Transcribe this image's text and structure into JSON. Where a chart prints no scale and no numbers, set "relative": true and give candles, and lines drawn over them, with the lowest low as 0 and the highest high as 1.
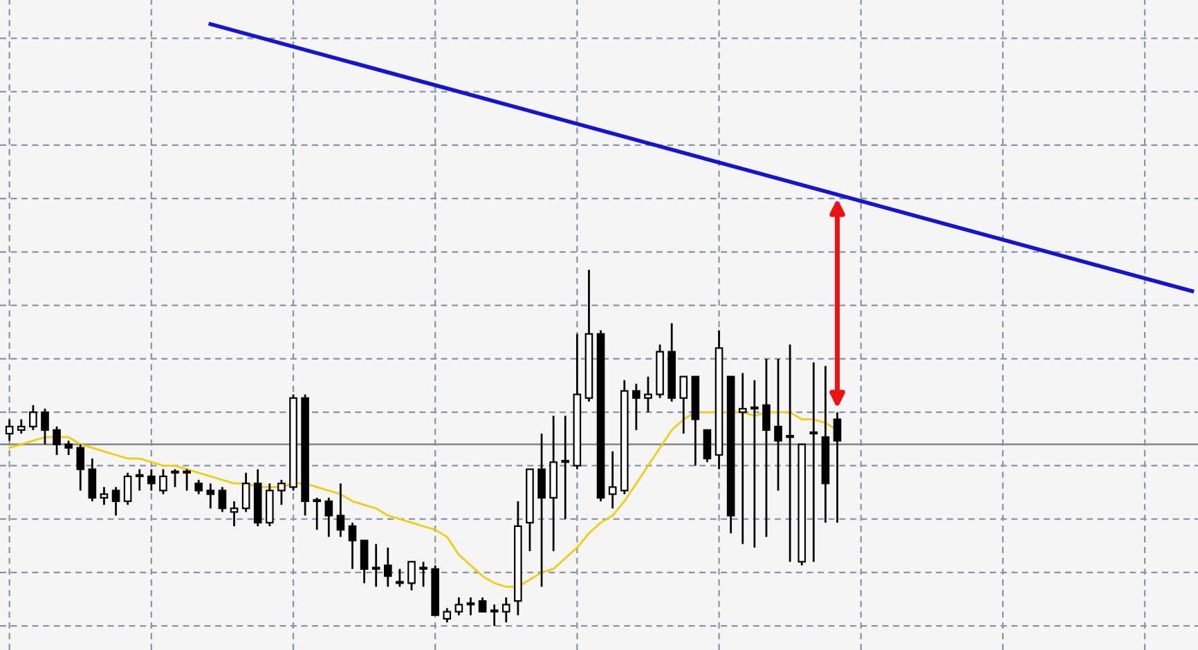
{
  "chart_data": {
    "type": "candlestick",
    "relative": true,
    "grid": true,
    "tick_labels": false,
    "categories": [
      null,
      null,
      null,
      null,
      null,
      null,
      null,
      null,
      null,
      null,
      null,
      null,
      null,
      null,
      null,
      null,
      null,
      null,
      null,
      null,
      null,
      null,
      null,
      null,
      null,
      null,
      null,
      null,
      null,
      null,
      null,
      null,
      null,
      null,
      null,
      null,
      null,
      null,
      null,
      null,
      null,
      null,
      null,
      null,
      null,
      null,
      null,
      null,
      null,
      null,
      null,
      null,
      null,
      null,
      null,
      null,
      null,
      null,
      null,
      null,
      null,
      null,
      null,
      null,
      null,
      null,
      null,
      null,
      null,
      null,
      null,
      null,
      null,
      null,
      null,
      null,
      null,
      null,
      null,
      null,
      null,
      null,
      null,
      null,
      null,
      null,
      null,
      null,
      null,
      null,
      null,
      null,
      null,
      null,
      null,
      null,
      null,
      null,
      null,
      null,
      null
    ],
    "ohlc": [
      [
        0.54,
        0.58,
        0.52,
        0.56
      ],
      [
        0.55,
        0.58,
        0.54,
        0.56
      ],
      [
        0.56,
        0.62,
        0.55,
        0.6
      ],
      [
        0.6,
        0.61,
        0.51,
        0.55
      ],
      [
        0.55,
        0.56,
        0.48,
        0.51
      ],
      [
        0.51,
        0.52,
        0.48,
        0.5
      ],
      [
        0.5,
        0.51,
        0.38,
        0.44
      ],
      [
        0.44,
        0.47,
        0.35,
        0.36
      ],
      [
        0.36,
        0.39,
        0.34,
        0.37
      ],
      [
        0.38,
        0.39,
        0.31,
        0.35
      ],
      [
        0.35,
        0.43,
        0.34,
        0.42
      ],
      [
        0.42,
        0.44,
        0.38,
        0.42
      ],
      [
        0.42,
        0.44,
        0.38,
        0.4
      ],
      [
        0.38,
        0.44,
        0.37,
        0.42
      ],
      [
        0.43,
        0.44,
        0.39,
        0.43
      ],
      [
        0.43,
        0.44,
        0.38,
        0.43
      ],
      [
        0.4,
        0.41,
        0.37,
        0.38
      ],
      [
        0.38,
        0.4,
        0.33,
        0.37
      ],
      [
        0.38,
        0.39,
        0.32,
        0.33
      ],
      [
        0.32,
        0.35,
        0.28,
        0.33
      ],
      [
        0.33,
        0.43,
        0.32,
        0.4
      ],
      [
        0.4,
        0.44,
        0.28,
        0.29
      ],
      [
        0.29,
        0.4,
        0.28,
        0.38
      ],
      [
        0.38,
        0.41,
        0.34,
        0.4
      ],
      [
        0.39,
        0.65,
        0.38,
        0.64
      ],
      [
        0.64,
        0.65,
        0.31,
        0.35
      ],
      [
        0.35,
        0.36,
        0.27,
        0.35
      ],
      [
        0.35,
        0.36,
        0.25,
        0.31
      ],
      [
        0.31,
        0.4,
        0.25,
        0.27
      ],
      [
        0.28,
        0.29,
        0.16,
        0.24
      ],
      [
        0.24,
        0.24,
        0.12,
        0.16
      ],
      [
        0.16,
        0.23,
        0.11,
        0.16
      ],
      [
        0.17,
        0.22,
        0.11,
        0.14
      ],
      [
        0.12,
        0.16,
        0.11,
        0.12
      ],
      [
        0.12,
        0.18,
        0.1,
        0.18
      ],
      [
        0.16,
        0.18,
        0.11,
        0.16
      ],
      [
        0.16,
        0.17,
        0.03,
        0.03
      ],
      [
        0.02,
        0.05,
        0.01,
        0.04
      ],
      [
        0.04,
        0.08,
        0.03,
        0.06
      ],
      [
        0.06,
        0.08,
        0.03,
        0.06
      ],
      [
        0.07,
        0.08,
        0.04,
        0.04
      ],
      [
        0.04,
        0.06,
        0,
        0.04
      ],
      [
        0.04,
        0.08,
        0.01,
        0.06
      ],
      [
        0.07,
        0.35,
        0.03,
        0.28
      ],
      [
        0.29,
        0.44,
        0.21,
        0.44
      ],
      [
        0.44,
        0.54,
        0.11,
        0.36
      ],
      [
        0.36,
        0.59,
        0.21,
        0.46
      ],
      [
        0.46,
        0.59,
        0.3,
        0.46
      ],
      [
        0.45,
        0.82,
        0.44,
        0.65
      ],
      [
        0.64,
        1,
        0.63,
        0.82
      ],
      [
        0.82,
        0.83,
        0.35,
        0.36
      ],
      [
        0.37,
        0.49,
        0.33,
        0.39
      ],
      [
        0.38,
        0.69,
        0.37,
        0.66
      ],
      [
        0.66,
        0.68,
        0.55,
        0.64
      ],
      [
        0.64,
        0.7,
        0.6,
        0.65
      ],
      [
        0.65,
        0.79,
        0.64,
        0.77
      ],
      [
        0.77,
        0.85,
        0.63,
        0.64
      ],
      [
        0.64,
        0.7,
        0.54,
        0.7
      ],
      [
        0.7,
        0.7,
        0.45,
        0.58
      ],
      [
        0.55,
        0.55,
        0.46,
        0.47
      ],
      [
        0.48,
        0.83,
        0.44,
        0.78
      ],
      [
        0.7,
        0.7,
        0.26,
        0.31
      ],
      [
        0.6,
        0.71,
        0.23,
        0.61
      ],
      [
        0.61,
        0.69,
        0.22,
        0.61
      ],
      [
        0.62,
        0.75,
        0.25,
        0.55
      ],
      [
        0.56,
        0.75,
        0.38,
        0.52
      ],
      [
        0.53,
        0.79,
        0.18,
        0.53
      ],
      [
        0.18,
        0.51,
        0.17,
        0.51
      ],
      [
        0.54,
        0.74,
        0.18,
        0.54
      ],
      [
        0.53,
        0.73,
        0.29,
        0.4
      ],
      [
        0.58,
        0.6,
        0.29,
        0.52
      ],
      null,
      null,
      null,
      null,
      null,
      null,
      null,
      null,
      null,
      null,
      null,
      null,
      null,
      null,
      null,
      null,
      null,
      null,
      null,
      null,
      null,
      null,
      null,
      null,
      null,
      null,
      null,
      null,
      null,
      null
    ],
    "series": [
      {
        "type": "line",
        "color": "#f2cc0c",
        "values": [
          0.5,
          0.51,
          0.52,
          0.53,
          0.53,
          0.53,
          0.51,
          0.5,
          0.49,
          0.48,
          0.47,
          0.47,
          0.46,
          0.45,
          0.45,
          0.44,
          0.43,
          0.42,
          0.41,
          0.4,
          0.4,
          0.39,
          0.39,
          0.39,
          0.4,
          0.4,
          0.39,
          0.38,
          0.37,
          0.35,
          0.34,
          0.33,
          0.31,
          0.3,
          0.29,
          0.28,
          0.27,
          0.25,
          0.2,
          0.17,
          0.14,
          0.12,
          0.11,
          0.11,
          0.13,
          0.15,
          0.16,
          0.19,
          0.22,
          0.26,
          0.29,
          0.31,
          0.35,
          0.4,
          0.45,
          0.5,
          0.55,
          0.58,
          0.6,
          0.6,
          0.6,
          0.6,
          0.6,
          0.59,
          0.6,
          0.6,
          0.6,
          0.58,
          0.58,
          0.57,
          0.55,
          null,
          null,
          null,
          null,
          null,
          null,
          null,
          null,
          null,
          null,
          null,
          null,
          null,
          null,
          null,
          null,
          null,
          null,
          null,
          null,
          null,
          null,
          null,
          null,
          null,
          null,
          null,
          null,
          null,
          null
        ]
      },
      {
        "type": "line",
        "color": "#1414d2",
        "values": [
          null,
          null,
          null,
          null,
          null,
          null,
          null,
          null,
          null,
          null,
          null,
          null,
          null,
          null,
          null,
          null,
          null,
          1.69,
          null,
          null,
          null,
          null,
          null,
          null,
          null,
          null,
          null,
          null,
          null,
          null,
          null,
          null,
          null,
          null,
          null,
          null,
          null,
          null,
          null,
          null,
          null,
          null,
          null,
          null,
          null,
          null,
          null,
          null,
          null,
          null,
          null,
          null,
          null,
          null,
          null,
          null,
          null,
          null,
          null,
          null,
          null,
          null,
          null,
          null,
          null,
          null,
          null,
          null,
          null,
          null,
          null,
          null,
          null,
          null,
          null,
          null,
          null,
          null,
          null,
          null,
          null,
          null,
          null,
          null,
          null,
          null,
          null,
          null,
          null,
          null,
          null,
          null,
          null,
          null,
          null,
          null,
          null,
          null,
          null,
          null,
          0.94
        ]
      }
    ],
    "ref_lines": [
      {
        "axis": "y",
        "value": 0.51,
        "color": "#8c8c8c"
      }
    ]
  }
}
